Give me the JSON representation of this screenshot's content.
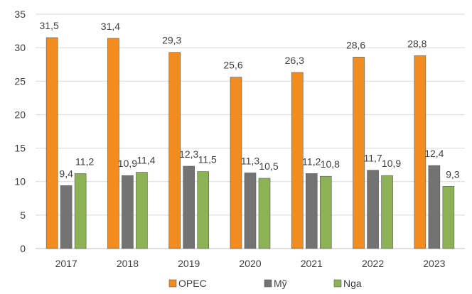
{
  "chart_data": {
    "type": "bar",
    "categories": [
      "2017",
      "2018",
      "2019",
      "2020",
      "2021",
      "2022",
      "2023"
    ],
    "series": [
      {
        "name": "OPEC",
        "values": [
          31.5,
          31.4,
          29.3,
          25.6,
          26.3,
          28.6,
          28.8
        ],
        "labels": [
          "31,5",
          "31,4",
          "29,3",
          "25,6",
          "26,3",
          "28,6",
          "28,8"
        ],
        "color": "#F28C1E"
      },
      {
        "name": "Mỹ",
        "values": [
          9.4,
          10.9,
          12.3,
          11.3,
          11.2,
          11.7,
          12.4
        ],
        "labels": [
          "9,4",
          "10,9",
          "12,3",
          "11,3",
          "11,2",
          "11,7",
          "12,4"
        ],
        "color": "#737373"
      },
      {
        "name": "Nga",
        "values": [
          11.2,
          11.4,
          11.5,
          10.5,
          10.8,
          10.9,
          9.3
        ],
        "labels": [
          "11,2",
          "11,4",
          "11,5",
          "10,5",
          "10,8",
          "10,9",
          "9,3"
        ],
        "color": "#8DB255"
      }
    ],
    "ylim": [
      0,
      35
    ],
    "yticks": [
      "0",
      "5",
      "10",
      "15",
      "20",
      "25",
      "30",
      "35"
    ],
    "grid": true,
    "legend": "bottom",
    "title": "",
    "xlabel": "",
    "ylabel": ""
  }
}
